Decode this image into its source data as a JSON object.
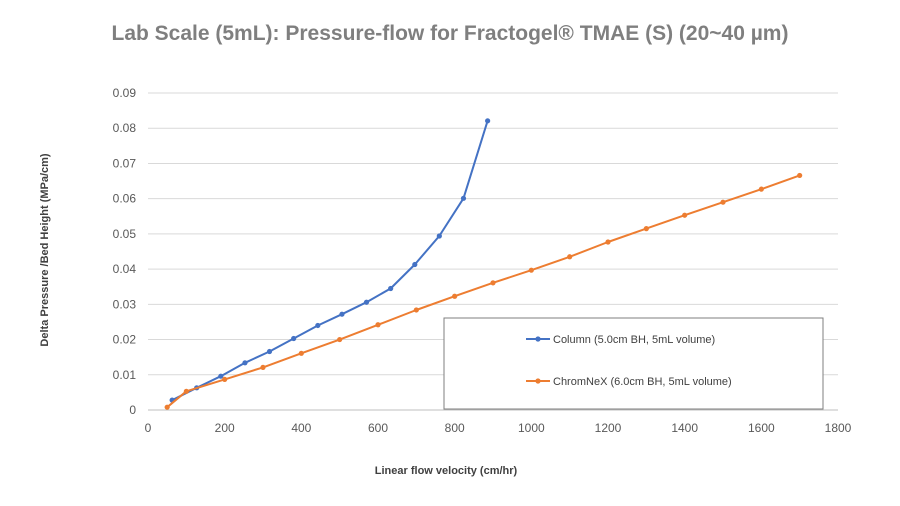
{
  "chart_data": {
    "type": "line",
    "title": "Lab Scale (5mL): Pressure-flow for Fractogel® TMAE (S) (20~40 µm)",
    "xlabel": "Linear flow velocity (cm/hr)",
    "ylabel": "Delta Pressure /Bed Height (MPa/cm)",
    "xlim": [
      0,
      1800
    ],
    "ylim": [
      0,
      0.09
    ],
    "x_ticks": [
      "0",
      "200",
      "400",
      "600",
      "800",
      "1000",
      "1200",
      "1400",
      "1600",
      "1800"
    ],
    "y_ticks": [
      "0",
      "0.01",
      "0.02",
      "0.03",
      "0.04",
      "0.05",
      "0.06",
      "0.07",
      "0.08",
      "0.09"
    ],
    "grid": "horizontal",
    "legend_placement": "bottom-right",
    "series": [
      {
        "name": "Column (5.0cm BH, 5mL volume)",
        "color": "#4472c4",
        "points": [
          [
            63,
            0.0028
          ],
          [
            127,
            0.0063
          ],
          [
            190,
            0.0096
          ],
          [
            253,
            0.0134
          ],
          [
            317,
            0.0166
          ],
          [
            380,
            0.0203
          ],
          [
            443,
            0.024
          ],
          [
            506,
            0.0272
          ],
          [
            570,
            0.0306
          ],
          [
            633,
            0.0345
          ],
          [
            696,
            0.0413
          ],
          [
            760,
            0.0494
          ],
          [
            823,
            0.0601
          ],
          [
            886,
            0.0821
          ]
        ]
      },
      {
        "name": "ChromNeX (6.0cm BH, 5mL volume)",
        "color": "#ed7d31",
        "points": [
          [
            50,
            0.0008
          ],
          [
            100,
            0.0053
          ],
          [
            200,
            0.0087
          ],
          [
            300,
            0.0121
          ],
          [
            400,
            0.0161
          ],
          [
            500,
            0.02
          ],
          [
            600,
            0.0242
          ],
          [
            700,
            0.0284
          ],
          [
            800,
            0.0323
          ],
          [
            900,
            0.0361
          ],
          [
            1000,
            0.0397
          ],
          [
            1100,
            0.0435
          ],
          [
            1200,
            0.0477
          ],
          [
            1300,
            0.0515
          ],
          [
            1400,
            0.0553
          ],
          [
            1500,
            0.059
          ],
          [
            1600,
            0.0627
          ],
          [
            1700,
            0.0666
          ]
        ]
      }
    ]
  }
}
